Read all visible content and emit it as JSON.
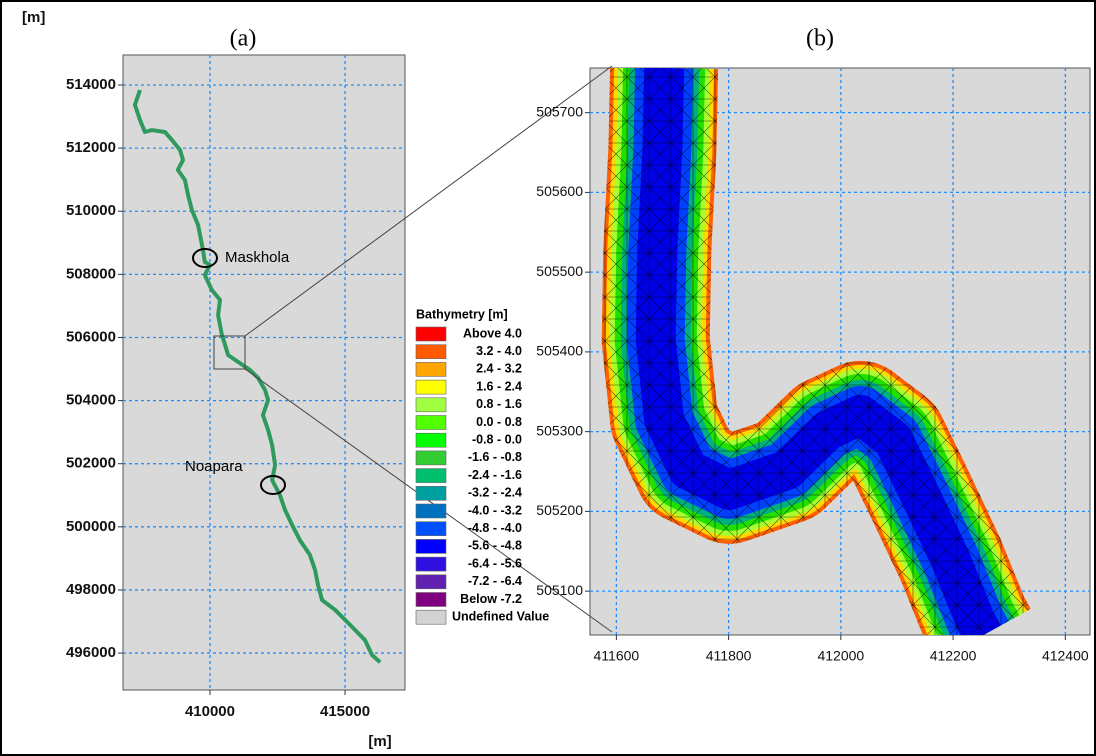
{
  "chart_data": [
    {
      "type": "line",
      "title": "(a)",
      "xlabel": "[m]",
      "ylabel": "[m]",
      "xlim": [
        406780,
        417220
      ],
      "ylim": [
        494830,
        514950
      ],
      "xticks": [
        410000,
        415000
      ],
      "yticks": [
        496000,
        498000,
        500000,
        502000,
        504000,
        506000,
        508000,
        510000,
        512000,
        514000
      ],
      "grid": true,
      "color": "#2f9a5e",
      "annotations": [
        "Maskhola",
        "Noapara"
      ],
      "x": [
        407410,
        407220,
        407410,
        407590,
        407850,
        408330,
        408590,
        408890,
        409000,
        408810,
        409070,
        409190,
        409330,
        409560,
        409630,
        409740,
        409810,
        410000,
        409810,
        410070,
        410370,
        410300,
        410440,
        410560,
        410670,
        410930,
        411480,
        411780,
        412040,
        412150,
        411960,
        412150,
        412300,
        412410,
        412300,
        412590,
        412780,
        413040,
        413330,
        413700,
        413890,
        414000,
        414150,
        414630,
        415190,
        415740,
        416000,
        416300
      ],
      "values": [
        513840,
        513370,
        512890,
        512510,
        512570,
        512510,
        512260,
        511940,
        511620,
        511310,
        510990,
        510510,
        510040,
        509560,
        509250,
        508770,
        508390,
        508300,
        507980,
        507500,
        507190,
        506710,
        506080,
        505760,
        505440,
        505290,
        504970,
        504720,
        504330,
        504020,
        503540,
        503070,
        502590,
        501960,
        501480,
        501010,
        500530,
        500060,
        499580,
        499110,
        498630,
        498160,
        497680,
        497370,
        496890,
        496410,
        495940,
        495710
      ]
    },
    {
      "type": "band",
      "title": "(b)",
      "xlim": [
        411553,
        412444
      ],
      "ylim": [
        505045,
        505756
      ],
      "xticks": [
        411600,
        411800,
        412000,
        412200,
        412400
      ],
      "yticks": [
        505100,
        505200,
        505300,
        505400,
        505500,
        505600,
        505700
      ],
      "grid": true,
      "colors": [
        "#ff6000",
        "#ffd800",
        "#a8ff30",
        "#20e000",
        "#00b080",
        "#0040ff",
        "#0000e8"
      ],
      "x": [
        411685,
        411682,
        411673,
        411670,
        411685,
        411728,
        411801,
        411904,
        411977,
        412035,
        412093,
        412137,
        412196,
        412239,
        412254
      ],
      "values": [
        505756,
        505654,
        505528,
        505415,
        505315,
        505252,
        505227,
        505252,
        505302,
        505321,
        505290,
        505227,
        505139,
        505064,
        505045
      ]
    }
  ],
  "legend": {
    "title": "Bathymetry [m]",
    "items": [
      {
        "label": "Above 4.0",
        "color": "#ff0000"
      },
      {
        "label": "3.2 - 4.0",
        "color": "#ff5a00"
      },
      {
        "label": "2.4 - 3.2",
        "color": "#ffa500"
      },
      {
        "label": "1.6 - 2.4",
        "color": "#ffff00"
      },
      {
        "label": "0.8 - 1.6",
        "color": "#a0ff40"
      },
      {
        "label": "0.0 - 0.8",
        "color": "#50ff00"
      },
      {
        "label": "-0.8 - 0.0",
        "color": "#00ff00"
      },
      {
        "label": "-1.6 - -0.8",
        "color": "#33cc33"
      },
      {
        "label": "-2.4 - -1.6",
        "color": "#00c070"
      },
      {
        "label": "-3.2 - -2.4",
        "color": "#00a0a0"
      },
      {
        "label": "-4.0 - -3.2",
        "color": "#0070c0"
      },
      {
        "label": "-4.8 - -4.0",
        "color": "#0050ff"
      },
      {
        "label": "-5.6 - -4.8",
        "color": "#0000ff"
      },
      {
        "label": "-6.4 - -5.6",
        "color": "#3010e0"
      },
      {
        "label": "-7.2 - -6.4",
        "color": "#6020b0"
      },
      {
        "label": "Below -7.2",
        "color": "#800080"
      },
      {
        "label": "Undefined Value",
        "color": "#d3d3d3"
      }
    ]
  }
}
